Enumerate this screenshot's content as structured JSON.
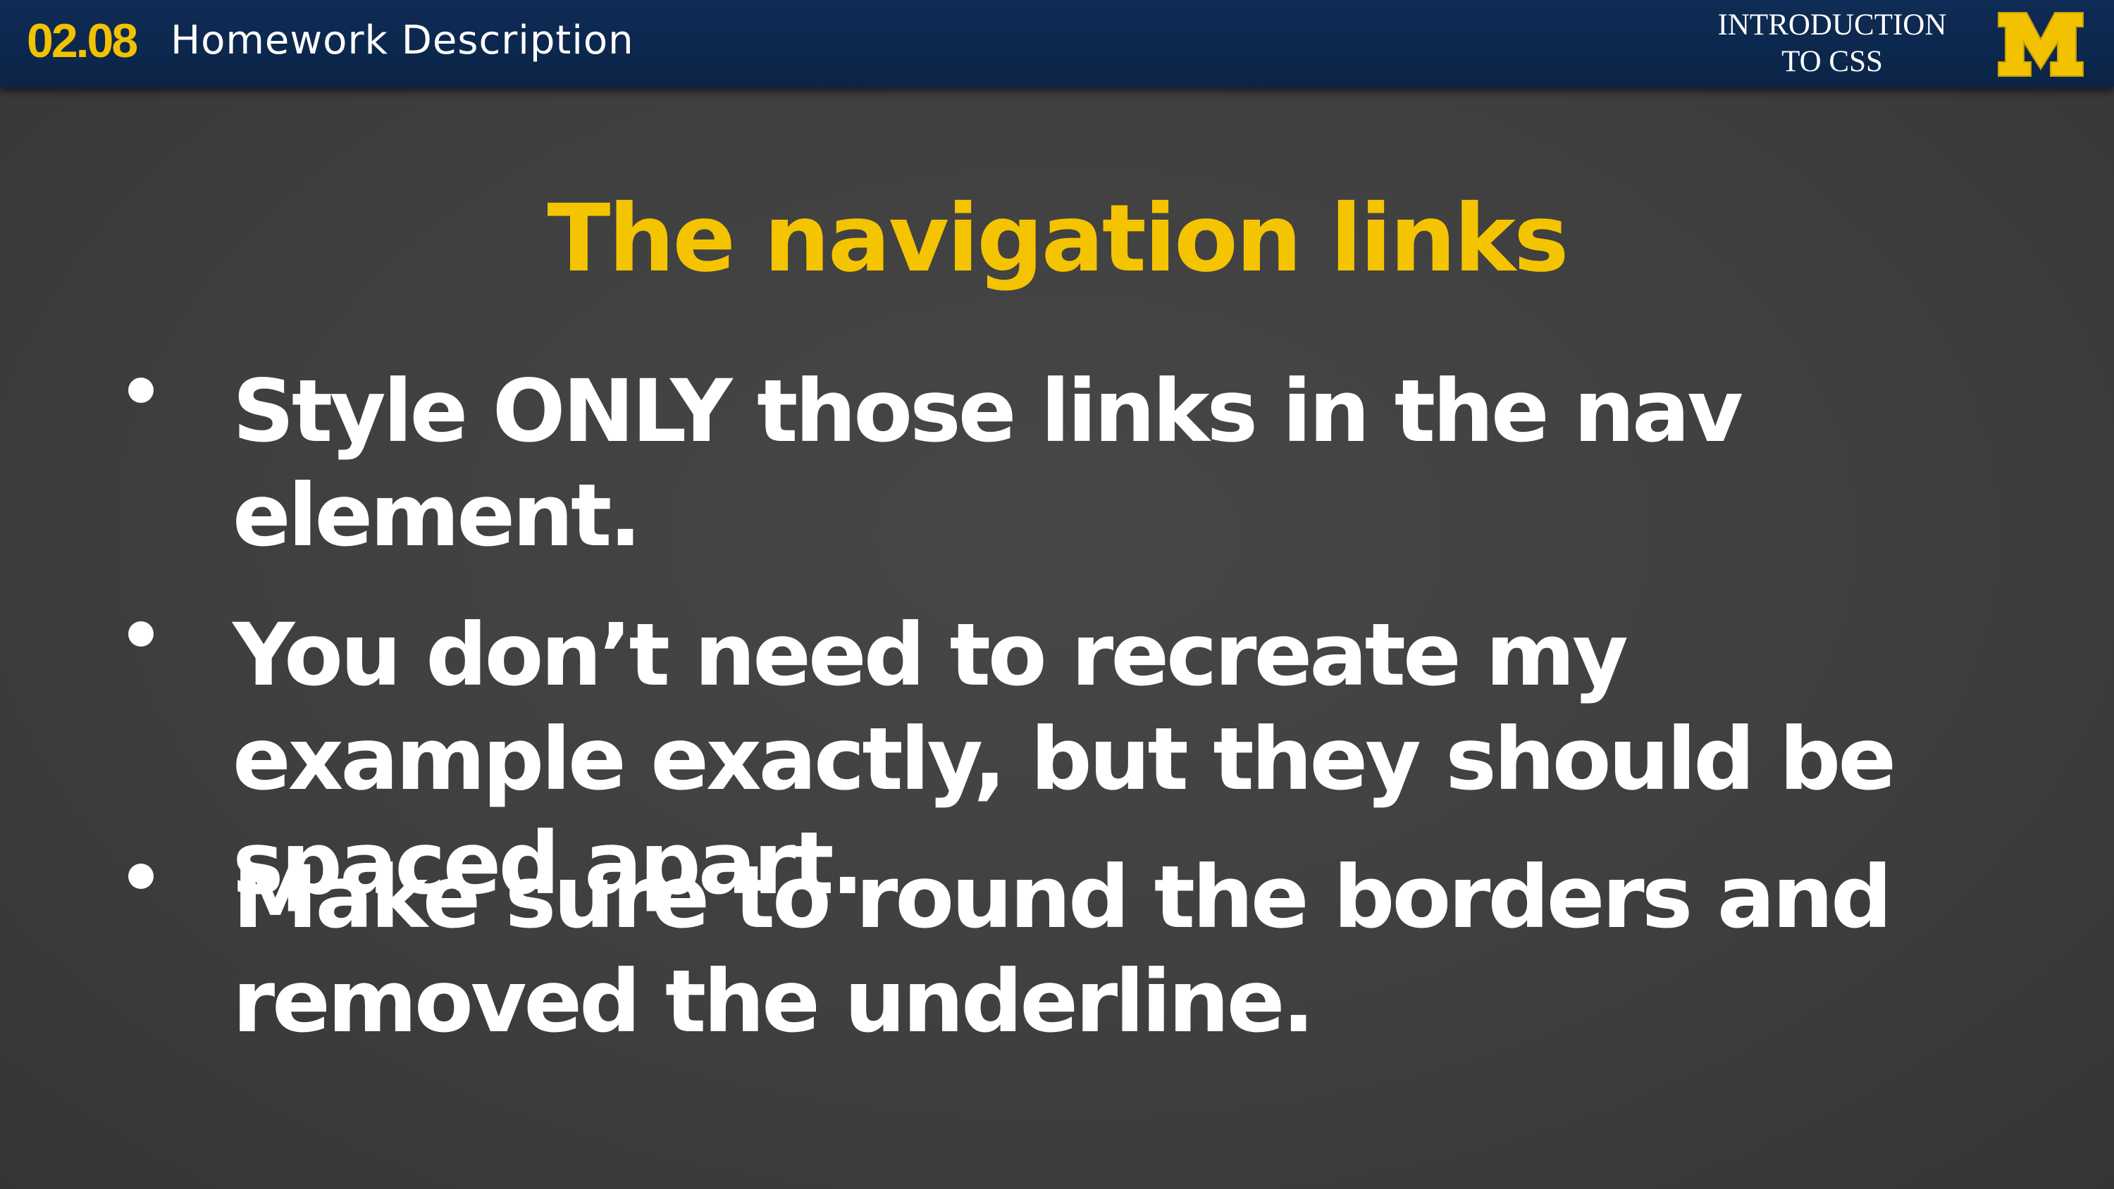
{
  "header": {
    "lesson_number": "02.08",
    "lesson_title": "Homework Description",
    "course_line1": "INTRODUCTION",
    "course_line2": "TO CSS",
    "logo_icon": "block-m-logo-icon"
  },
  "slide": {
    "title": "The navigation links",
    "bullets": [
      "Style ONLY those links in the nav element.",
      "You don’t need to recreate my example exactly, but they should be spaced apart.",
      "Make sure to round the borders and removed the underline."
    ]
  },
  "colors": {
    "header_bar": "#0b2447",
    "accent_maize": "#f5c400",
    "background": "#3f3f3f",
    "text": "#ffffff"
  }
}
